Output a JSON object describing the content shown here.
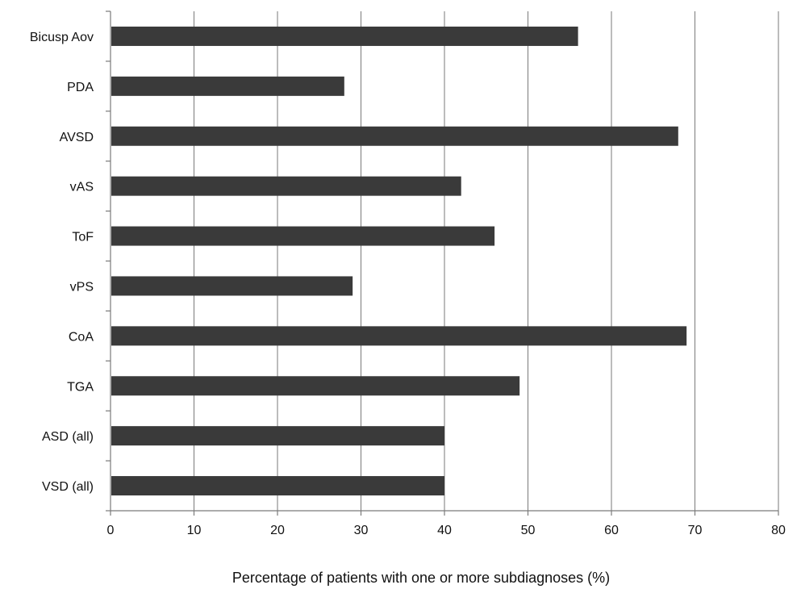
{
  "chart_data": {
    "type": "bar",
    "orientation": "horizontal",
    "categories": [
      "Bicusp Aov",
      "PDA",
      "AVSD",
      "vAS",
      "ToF",
      "vPS",
      "CoA",
      "TGA",
      "ASD (all)",
      "VSD (all)"
    ],
    "values": [
      56,
      28,
      68,
      42,
      46,
      29,
      69,
      49,
      40,
      40
    ],
    "xlabel": "Percentage of patients with one or more subdiagnoses (%)",
    "ylabel": "",
    "xlim": [
      0,
      80
    ],
    "xticks": [
      "0",
      "10",
      "20",
      "30",
      "40",
      "50",
      "60",
      "70",
      "80"
    ],
    "grid": "vertical",
    "legend": "none",
    "colors": {
      "bar": "#3a3a3a",
      "grid": "#7a7a7a"
    }
  }
}
